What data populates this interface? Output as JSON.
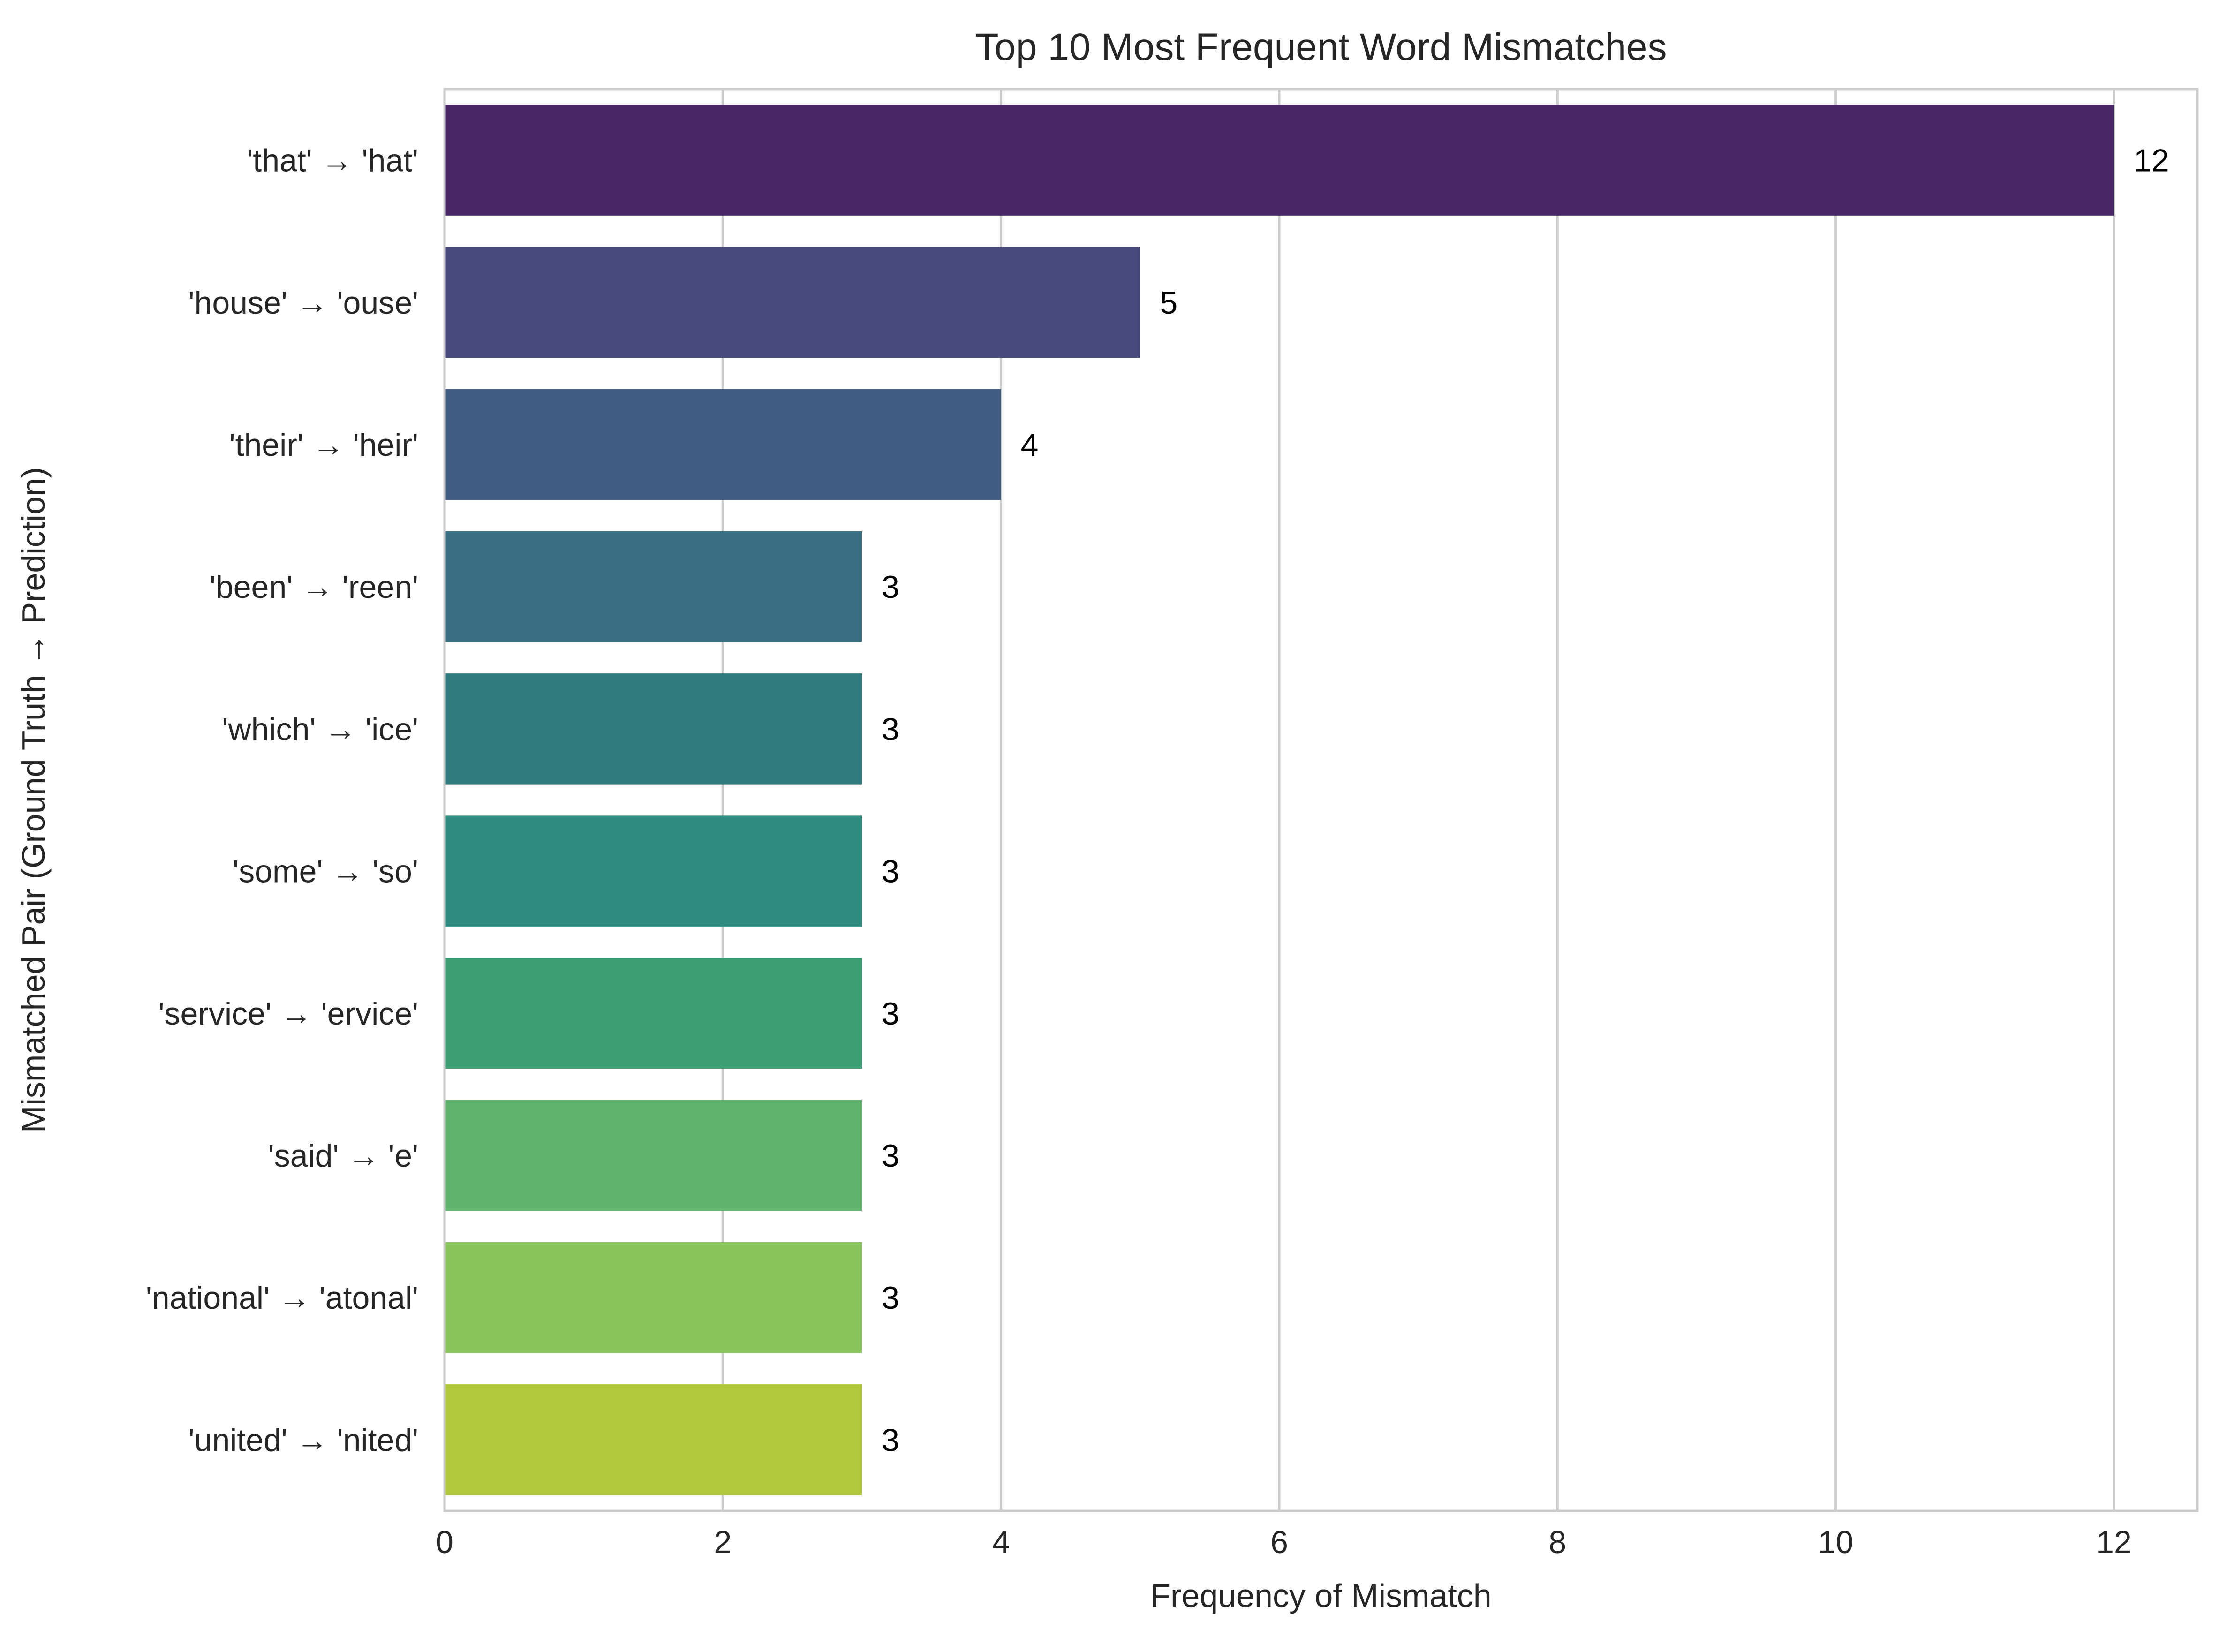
{
  "chart_data": {
    "type": "bar",
    "orientation": "horizontal",
    "title": "Top 10 Most Frequent Word Mismatches",
    "xlabel": "Frequency of Mismatch",
    "ylabel": "Mismatched Pair (Ground Truth → Prediction)",
    "categories": [
      "'that' → 'hat'",
      "'house' → 'ouse'",
      "'their' → 'heir'",
      "'been' → 'reen'",
      "'which' → 'ice'",
      "'some' → 'so'",
      "'service' → 'ervice'",
      "'said' → 'e'",
      "'national' → 'atonal'",
      "'united' → 'nited'"
    ],
    "values": [
      12,
      5,
      4,
      3,
      3,
      3,
      3,
      3,
      3,
      3
    ],
    "data_labels": [
      "12",
      "5",
      "4",
      "3",
      "3",
      "3",
      "3",
      "3",
      "3",
      "3"
    ],
    "colors": [
      "#482768",
      "#484a7d",
      "#425b83",
      "#386d82",
      "#307a80",
      "#2d8c7d",
      "#3c9f74",
      "#62b46d",
      "#89c35c",
      "#b2c83a"
    ],
    "xlim": [
      0,
      12.6
    ],
    "xticks": [
      0,
      2,
      4,
      6,
      8,
      10,
      12
    ],
    "xtick_labels": [
      "0",
      "2",
      "4",
      "6",
      "8",
      "10",
      "12"
    ],
    "grid": "vertical",
    "legend": "none"
  }
}
